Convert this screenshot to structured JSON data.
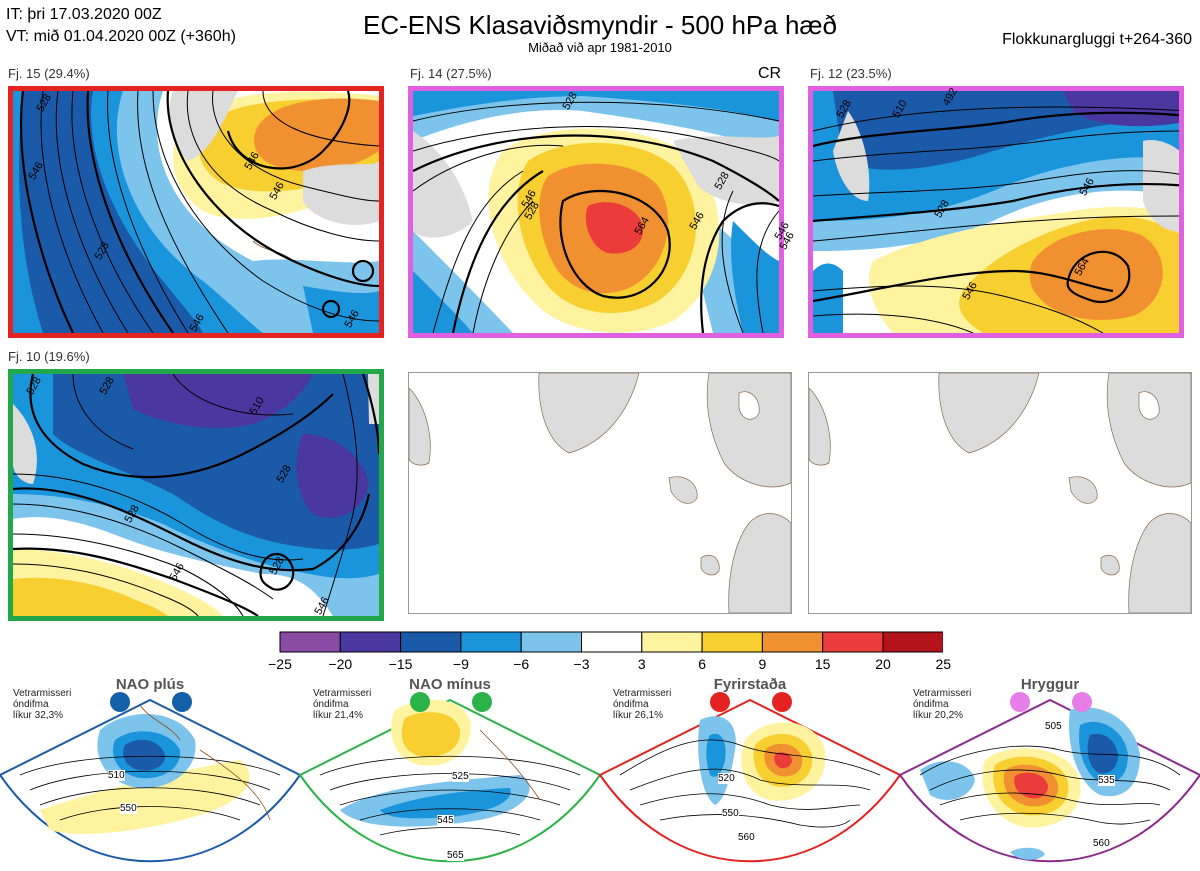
{
  "header": {
    "init_line": "IT: þri 17.03.2020 00Z",
    "valid_line": "VT: mið 01.04.2020 00Z  (+360h)",
    "title": "EC-ENS Klasaviðsmyndir - 500 hPa hæð",
    "subtitle": "Miðað við apr 1981-2010",
    "window": "Flokkunargluggi t+264-360"
  },
  "panels": [
    {
      "label": "Fj. 15 (29.4%)",
      "border": "#e52222",
      "contours": [
        "528",
        "546",
        "528",
        "546",
        "546",
        "546",
        "546"
      ]
    },
    {
      "label": "Fj. 14 (27.5%)",
      "border": "#e060e0",
      "tag": "CR",
      "contours": [
        "528",
        "546",
        "528",
        "564",
        "546",
        "528",
        "546",
        "546"
      ]
    },
    {
      "label": "Fj. 12 (23.5%)",
      "border": "#e060e0",
      "contours": [
        "528",
        "510",
        "492",
        "546",
        "528",
        "546",
        "564"
      ]
    },
    {
      "label": "Fj. 10 (19.6%)",
      "border": "#22a84a",
      "contours": [
        "528",
        "528",
        "510",
        "528",
        "528",
        "546",
        "528",
        "546"
      ]
    }
  ],
  "colorbar": {
    "ticks": [
      "−25",
      "−20",
      "−15",
      "−9",
      "−6",
      "−3",
      "3",
      "6",
      "9",
      "15",
      "20",
      "25"
    ],
    "colors": [
      "#8a4ba4",
      "#4b37a0",
      "#1a5aa8",
      "#1a95dc",
      "#7cc4ec",
      "#ffffff",
      "#fff3a0",
      "#f7cf30",
      "#f19031",
      "#ec3b3b",
      "#b3141b"
    ]
  },
  "regimes": [
    {
      "name": "NAO plús",
      "note": [
        "Vetrarmisseri",
        "óndifma",
        "líkur 32,3%"
      ],
      "dot_color": "#1460a8",
      "border": "#1a5aa8",
      "contours": [
        "510",
        "550"
      ]
    },
    {
      "name": "NAO mínus",
      "note": [
        "Vetrarmisseri",
        "óndifma",
        "líkur 21,4%"
      ],
      "dot_color": "#2bb34a",
      "border": "#2bb34a",
      "contours": [
        "525",
        "545",
        "565"
      ]
    },
    {
      "name": "Fyrirstaða",
      "note": [
        "Vetrarmisseri",
        "óndifma",
        "líkur 26,1%"
      ],
      "dot_color": "#e52222",
      "border": "#e52222",
      "contours": [
        "520",
        "550",
        "560"
      ]
    },
    {
      "name": "Hryggur",
      "note": [
        "Vetrarmisseri",
        "óndifma",
        "líkur 20,2%"
      ],
      "dot_color": "#e77de7",
      "border": "#8a2a8a",
      "contours": [
        "505",
        "535",
        "560"
      ]
    }
  ]
}
